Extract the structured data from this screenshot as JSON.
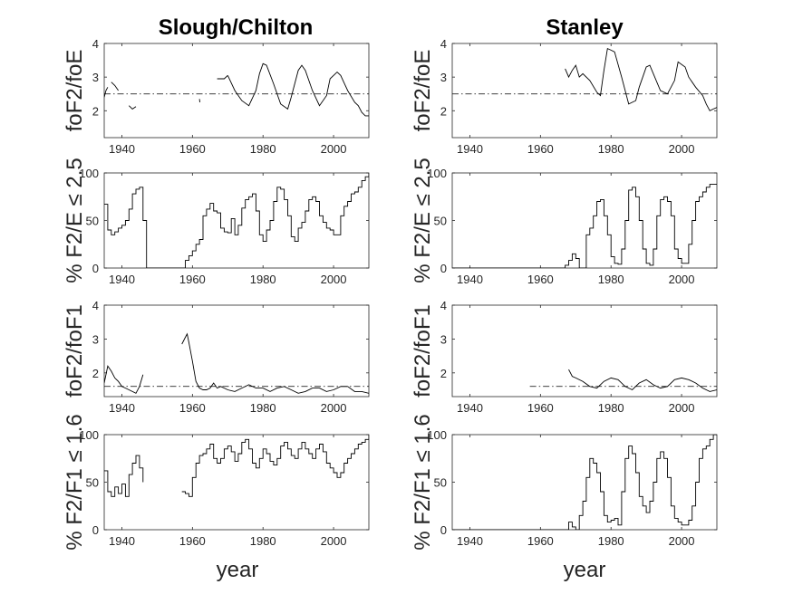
{
  "figure": {
    "background": "#ffffff",
    "line_color": "#000000"
  },
  "chart_data": [
    {
      "type": "line",
      "title": "Slough/Chilton",
      "ylabel": "foF2/foE",
      "xlim": [
        1935,
        2010
      ],
      "ylim": [
        1.2,
        4
      ],
      "xticks": [
        1940,
        1960,
        1980,
        2000
      ],
      "yticks": [
        2,
        3,
        4
      ],
      "threshold": 2.5,
      "threshold_range": [
        1935,
        2010
      ],
      "segments": [
        {
          "x": [
            1935,
            1935.5,
            1936
          ],
          "y": [
            2.4,
            2.6,
            2.7
          ]
        },
        {
          "x": [
            1937,
            1938,
            1939
          ],
          "y": [
            2.85,
            2.75,
            2.6
          ]
        },
        {
          "x": [
            1942,
            1943,
            1944
          ],
          "y": [
            2.15,
            2.05,
            2.12
          ]
        },
        {
          "x": [
            1962,
            1962.1
          ],
          "y": [
            2.35,
            2.25
          ]
        },
        {
          "x": [
            1967,
            1969,
            1970
          ],
          "y": [
            2.95,
            2.95,
            3.05
          ]
        },
        {
          "x": [
            1970,
            1972,
            1974,
            1976,
            1978,
            1979,
            1980,
            1981,
            1983,
            1985,
            1987,
            1988,
            1990,
            1991,
            1992,
            1994,
            1996,
            1998,
            1999,
            2001,
            2002,
            2004,
            2006,
            2007,
            2008,
            2009,
            2010
          ],
          "y": [
            3.05,
            2.6,
            2.3,
            2.15,
            2.6,
            3.1,
            3.4,
            3.35,
            2.8,
            2.2,
            2.05,
            2.4,
            3.2,
            3.35,
            3.2,
            2.6,
            2.15,
            2.45,
            2.95,
            3.15,
            3.05,
            2.6,
            2.25,
            2.15,
            1.95,
            1.85,
            1.85
          ]
        }
      ]
    },
    {
      "type": "line",
      "title": "Stanley",
      "ylabel": "foF2/foE",
      "xlim": [
        1935,
        2010
      ],
      "ylim": [
        1.2,
        4
      ],
      "xticks": [
        1940,
        1960,
        1980,
        2000
      ],
      "yticks": [
        2,
        3,
        4
      ],
      "threshold": 2.5,
      "threshold_range": [
        1935,
        2010
      ],
      "segments": [
        {
          "x": [
            1967,
            1968,
            1969,
            1970,
            1971,
            1972,
            1974,
            1976,
            1977,
            1978,
            1979,
            1980,
            1981,
            1983,
            1985,
            1987,
            1988,
            1990,
            1991,
            1992,
            1994,
            1996,
            1998,
            1999,
            2001,
            2002,
            2004,
            2006,
            2007,
            2008,
            2009,
            2010
          ],
          "y": [
            3.25,
            3.0,
            3.2,
            3.35,
            3.0,
            3.1,
            2.9,
            2.55,
            2.45,
            3.2,
            3.85,
            3.8,
            3.75,
            3.0,
            2.2,
            2.3,
            2.7,
            3.3,
            3.35,
            3.1,
            2.6,
            2.5,
            2.9,
            3.45,
            3.3,
            3.0,
            2.7,
            2.45,
            2.2,
            2.0,
            2.05,
            2.1
          ]
        }
      ]
    },
    {
      "type": "line",
      "title": "",
      "ylabel": "% F2/E ≤ 2.5",
      "xlim": [
        1935,
        2010
      ],
      "ylim": [
        0,
        100
      ],
      "xticks": [
        1940,
        1960,
        1980,
        2000
      ],
      "yticks": [
        0,
        50,
        100
      ],
      "segments": [
        {
          "x": [
            1935,
            1936,
            1937,
            1938,
            1939,
            1940,
            1941,
            1942,
            1943,
            1944,
            1945,
            1946,
            1947,
            1948,
            1949,
            1950,
            1951,
            1952,
            1953,
            1954,
            1955,
            1956,
            1957,
            1958,
            1959,
            1960,
            1961,
            1962,
            1963,
            1964,
            1965,
            1966,
            1967,
            1968,
            1969,
            1970,
            1971,
            1972,
            1973,
            1974,
            1975,
            1976,
            1977,
            1978,
            1979,
            1980,
            1981,
            1982,
            1983,
            1984,
            1985,
            1986,
            1987,
            1988,
            1989,
            1990,
            1991,
            1992,
            1993,
            1994,
            1995,
            1996,
            1997,
            1998,
            1999,
            2000,
            2001,
            2002,
            2003,
            2004,
            2005,
            2006,
            2007,
            2008,
            2009,
            2010
          ],
          "y": [
            67,
            40,
            35,
            38,
            42,
            45,
            50,
            62,
            78,
            83,
            85,
            50,
            0,
            0,
            0,
            0,
            0,
            0,
            0,
            0,
            0,
            0,
            0,
            8,
            13,
            18,
            25,
            30,
            55,
            62,
            68,
            60,
            58,
            42,
            38,
            37,
            52,
            35,
            45,
            63,
            72,
            75,
            78,
            60,
            35,
            28,
            40,
            50,
            70,
            85,
            83,
            72,
            55,
            33,
            28,
            42,
            48,
            60,
            72,
            75,
            70,
            55,
            48,
            42,
            40,
            35,
            35,
            55,
            65,
            70,
            78,
            80,
            85,
            92,
            96,
            100
          ]
        }
      ]
    },
    {
      "type": "line",
      "title": "",
      "ylabel": "% F2/E ≤ 2.5",
      "xlim": [
        1935,
        2010
      ],
      "ylim": [
        0,
        100
      ],
      "xticks": [
        1940,
        1960,
        1980,
        2000
      ],
      "yticks": [
        0,
        50,
        100
      ],
      "segments": [
        {
          "x": [
            1935,
            1966,
            1967,
            1968,
            1969,
            1970,
            1971,
            1972,
            1973,
            1974,
            1975,
            1976,
            1977,
            1978,
            1979,
            1980,
            1981,
            1982,
            1983,
            1984,
            1985,
            1986,
            1987,
            1988,
            1989,
            1990,
            1991,
            1992,
            1993,
            1994,
            1995,
            1996,
            1997,
            1998,
            1999,
            2000,
            2001,
            2002,
            2003,
            2004,
            2005,
            2006,
            2007,
            2008,
            2009,
            2010
          ],
          "y": [
            0,
            0,
            3,
            8,
            15,
            10,
            0,
            0,
            35,
            42,
            55,
            70,
            72,
            55,
            35,
            12,
            5,
            4,
            20,
            50,
            82,
            85,
            75,
            50,
            20,
            5,
            3,
            20,
            55,
            72,
            75,
            70,
            55,
            20,
            10,
            5,
            5,
            25,
            50,
            70,
            75,
            80,
            85,
            88,
            88,
            88
          ]
        }
      ]
    },
    {
      "type": "line",
      "title": "",
      "ylabel": "foF2/foF1",
      "xlim": [
        1935,
        2010
      ],
      "ylim": [
        1.3,
        4
      ],
      "xticks": [
        1940,
        1960,
        1980,
        2000
      ],
      "yticks": [
        2,
        3,
        4
      ],
      "threshold": 1.6,
      "threshold_range": [
        1935,
        2010
      ],
      "segments": [
        {
          "x": [
            1935,
            1936,
            1937,
            1938,
            1939,
            1940,
            1941,
            1942,
            1943,
            1944,
            1945,
            1946
          ],
          "y": [
            1.7,
            2.2,
            2.05,
            1.85,
            1.75,
            1.6,
            1.55,
            1.5,
            1.45,
            1.4,
            1.6,
            1.95
          ]
        },
        {
          "x": [
            1957,
            1958,
            1958.5,
            1959,
            1960,
            1961,
            1962,
            1963,
            1964,
            1965,
            1966,
            1967,
            1968,
            1969,
            1970,
            1972,
            1974,
            1976,
            1978,
            1980,
            1982,
            1984,
            1986,
            1988,
            1990,
            1992,
            1994,
            1996,
            1998,
            2000,
            2002,
            2004,
            2006,
            2008,
            2010
          ],
          "y": [
            2.85,
            3.05,
            3.15,
            2.9,
            2.35,
            1.75,
            1.55,
            1.5,
            1.5,
            1.55,
            1.7,
            1.55,
            1.6,
            1.55,
            1.5,
            1.45,
            1.55,
            1.65,
            1.55,
            1.55,
            1.45,
            1.55,
            1.6,
            1.5,
            1.4,
            1.45,
            1.55,
            1.55,
            1.45,
            1.5,
            1.6,
            1.6,
            1.45,
            1.45,
            1.4
          ]
        }
      ]
    },
    {
      "type": "line",
      "title": "",
      "ylabel": "foF2/foF1",
      "xlim": [
        1935,
        2010
      ],
      "ylim": [
        1.3,
        4
      ],
      "xticks": [
        1940,
        1960,
        1980,
        2000
      ],
      "yticks": [
        2,
        3,
        4
      ],
      "threshold": 1.6,
      "threshold_range": [
        1957,
        2010
      ],
      "segments": [
        {
          "x": [
            1968,
            1969,
            1970,
            1972,
            1974,
            1976,
            1978,
            1980,
            1982,
            1984,
            1986,
            1988,
            1990,
            1992,
            1994,
            1996,
            1998,
            2000,
            2002,
            2004,
            2006,
            2008,
            2010
          ],
          "y": [
            2.1,
            1.9,
            1.85,
            1.75,
            1.6,
            1.55,
            1.75,
            1.85,
            1.8,
            1.6,
            1.5,
            1.7,
            1.8,
            1.65,
            1.55,
            1.6,
            1.8,
            1.85,
            1.8,
            1.7,
            1.55,
            1.45,
            1.5
          ]
        }
      ]
    },
    {
      "type": "line",
      "title": "",
      "ylabel": "% F2/F1 ≤ 1.6",
      "xlabel": "year",
      "xlim": [
        1935,
        2010
      ],
      "ylim": [
        0,
        100
      ],
      "xticks": [
        1940,
        1960,
        1980,
        2000
      ],
      "yticks": [
        0,
        50,
        100
      ],
      "segments": [
        {
          "x": [
            1935,
            1936,
            1937,
            1938,
            1939,
            1940,
            1941,
            1942,
            1943,
            1944,
            1945,
            1946
          ],
          "y": [
            62,
            40,
            35,
            45,
            38,
            48,
            35,
            58,
            70,
            78,
            65,
            50
          ]
        },
        {
          "x": [
            1957,
            1958,
            1959,
            1960,
            1961,
            1962,
            1963,
            1964,
            1965,
            1966,
            1967,
            1968,
            1969,
            1970,
            1971,
            1972,
            1973,
            1974,
            1975,
            1976,
            1977,
            1978,
            1979,
            1980,
            1981,
            1982,
            1983,
            1984,
            1985,
            1986,
            1987,
            1988,
            1989,
            1990,
            1991,
            1992,
            1993,
            1994,
            1995,
            1996,
            1997,
            1998,
            1999,
            2000,
            2001,
            2002,
            2003,
            2004,
            2005,
            2006,
            2007,
            2008,
            2009,
            2010
          ],
          "y": [
            40,
            38,
            35,
            55,
            70,
            78,
            80,
            85,
            90,
            75,
            70,
            75,
            85,
            88,
            82,
            72,
            80,
            92,
            95,
            85,
            70,
            65,
            75,
            85,
            80,
            72,
            68,
            75,
            88,
            92,
            85,
            78,
            75,
            85,
            92,
            85,
            80,
            75,
            85,
            90,
            82,
            70,
            65,
            60,
            55,
            60,
            70,
            75,
            80,
            85,
            90,
            92,
            95,
            100
          ]
        }
      ]
    },
    {
      "type": "line",
      "title": "",
      "ylabel": "% F2/F1 ≤ 1.6",
      "xlabel": "year",
      "xlim": [
        1935,
        2010
      ],
      "ylim": [
        0,
        100
      ],
      "xticks": [
        1940,
        1960,
        1980,
        2000
      ],
      "yticks": [
        0,
        50,
        100
      ],
      "segments": [
        {
          "x": [
            1935,
            1966,
            1967,
            1968,
            1969,
            1970,
            1971,
            1972,
            1973,
            1974,
            1975,
            1976,
            1977,
            1978,
            1979,
            1980,
            1981,
            1982,
            1983,
            1984,
            1985,
            1986,
            1987,
            1988,
            1989,
            1990,
            1991,
            1992,
            1993,
            1994,
            1995,
            1996,
            1997,
            1998,
            1999,
            2000,
            2001,
            2002,
            2003,
            2004,
            2005,
            2006,
            2007,
            2008,
            2009,
            2010
          ],
          "y": [
            0,
            0,
            0,
            8,
            3,
            0,
            15,
            30,
            55,
            75,
            70,
            60,
            40,
            15,
            8,
            10,
            12,
            5,
            40,
            75,
            88,
            80,
            60,
            35,
            25,
            18,
            30,
            50,
            75,
            82,
            75,
            55,
            25,
            12,
            8,
            5,
            5,
            10,
            25,
            50,
            75,
            85,
            88,
            95,
            100,
            100
          ]
        }
      ]
    }
  ]
}
